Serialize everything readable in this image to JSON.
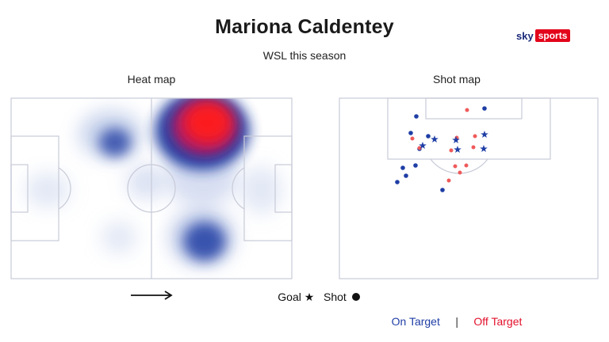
{
  "title": "Mariona Caldentey",
  "subtitle": "WSL this season",
  "logo": {
    "sky": "sky",
    "sports": "sports"
  },
  "heatmap": {
    "label": "Heat map",
    "direction_arrow": "right-arrow",
    "hot_zones": [
      {
        "zone": "central-right attacking midfield",
        "intensity": "high"
      },
      {
        "zone": "left half-space",
        "intensity": "medium"
      },
      {
        "zone": "lower channel",
        "intensity": "medium"
      }
    ]
  },
  "shotmap": {
    "label": "Shot map",
    "goals_on_target": 6,
    "shots_on_target": 10,
    "shots_off_target": 11
  },
  "legend": {
    "goal_label": "Goal",
    "goal_icon": "star-icon",
    "shot_label": "Shot",
    "shot_icon": "circle-icon",
    "on_target": "On Target",
    "separator": "|",
    "off_target": "Off Target"
  },
  "colors": {
    "on_target": "#1f3ea5",
    "off_target": "#e3102b",
    "pitch_lines": "#c8cbd8",
    "heat_hot": "#ff1a1a",
    "heat_cold": "#2346a0"
  }
}
